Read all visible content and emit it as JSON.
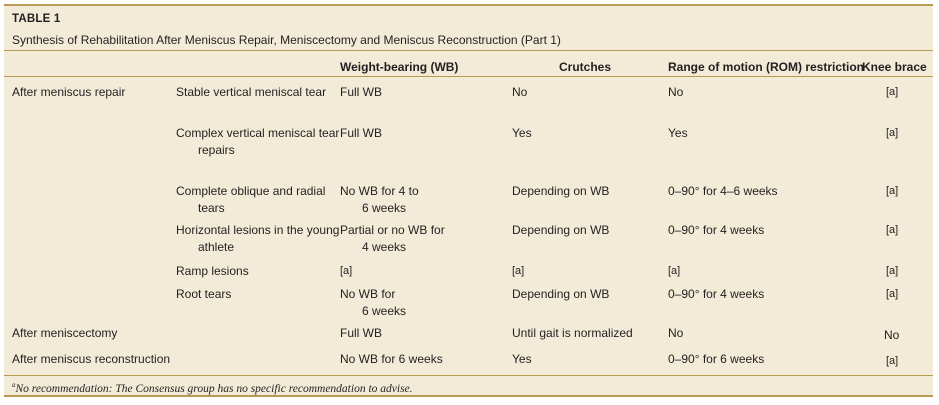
{
  "table": {
    "label": "TABLE 1",
    "caption": "Synthesis of Rehabilitation After Meniscus Repair, Meniscectomy and Meniscus Reconstruction (Part 1)",
    "headers": {
      "wb": "Weight-bearing (WB)",
      "crutches": "Crutches",
      "rom": "Range of motion (ROM) restriction",
      "brace": "Knee brace"
    },
    "groups": {
      "repair": "After meniscus repair",
      "meniscectomy": "After meniscectomy",
      "reconstruction": "After meniscus reconstruction"
    },
    "rows": [
      {
        "sub": [
          "Stable vertical meniscal tear"
        ],
        "wb": [
          "Full WB"
        ],
        "crutches": "No",
        "rom": "No",
        "brace": "[a]"
      },
      {
        "sub": [
          "Complex vertical meniscal tear",
          "repairs"
        ],
        "wb": [
          "Full WB"
        ],
        "crutches": "Yes",
        "rom": "Yes",
        "brace": "[a]"
      },
      {
        "sub": [
          "Complete oblique and radial",
          "tears"
        ],
        "wb": [
          "No WB for 4 to",
          "6 weeks"
        ],
        "crutches": "Depending on WB",
        "rom": "0–90° for 4–6 weeks",
        "brace": "[a]"
      },
      {
        "sub": [
          "Horizontal lesions in the young",
          "athlete"
        ],
        "wb": [
          "Partial or no WB for",
          "4 weeks"
        ],
        "crutches": "Depending on WB",
        "rom": "0–90° for 4 weeks",
        "brace": "[a]"
      },
      {
        "sub": [
          "Ramp lesions"
        ],
        "wb": [
          "[a]"
        ],
        "crutches": "[a]",
        "rom": "[a]",
        "brace": "[a]"
      },
      {
        "sub": [
          "Root tears"
        ],
        "wb": [
          "No WB for",
          "6 weeks"
        ],
        "crutches": "Depending on WB",
        "rom": "0–90° for 4 weeks",
        "brace": "[a]"
      },
      {
        "sub": [
          ""
        ],
        "wb": [
          "Full WB"
        ],
        "crutches": "Until gait is normalized",
        "rom": "No",
        "brace": "No"
      },
      {
        "sub": [
          ""
        ],
        "wb": [
          "No WB for 6 weeks"
        ],
        "crutches": "Yes",
        "rom": "0–90° for 6 weeks",
        "brace": "[a]"
      }
    ],
    "footnote": {
      "marker": "a",
      "text": "No recommendation: The Consensus group has no specific recommendation to advise."
    }
  }
}
